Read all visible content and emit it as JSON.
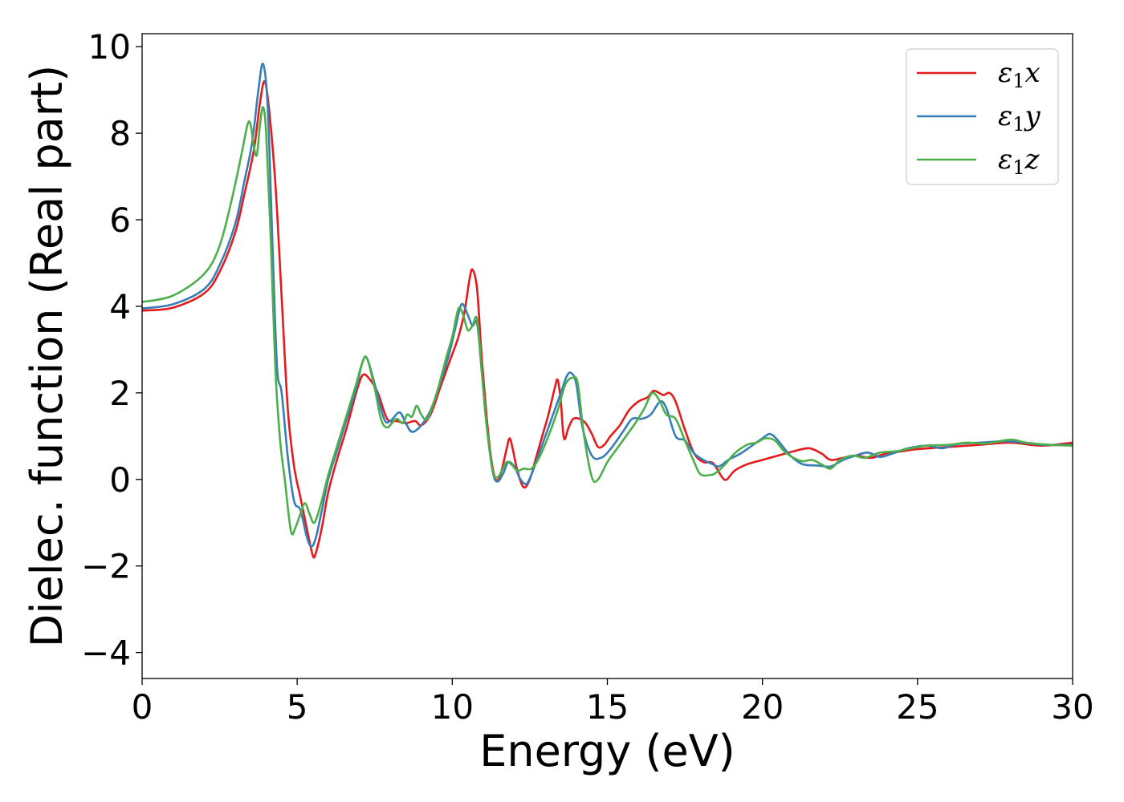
{
  "chart_data": {
    "type": "line",
    "xlabel": "Energy (eV)",
    "ylabel": "Dielec. function (Real part)",
    "xlim": [
      0,
      30
    ],
    "ylim": [
      -4.6,
      10.3
    ],
    "xticks": [
      0,
      5,
      10,
      15,
      20,
      25,
      30
    ],
    "xtick_labels": [
      "0",
      "5",
      "10",
      "15",
      "20",
      "25",
      "30"
    ],
    "yticks": [
      -4,
      -2,
      0,
      2,
      4,
      6,
      8,
      10
    ],
    "ytick_labels": [
      "−4",
      "−2",
      "0",
      "2",
      "4",
      "6",
      "8",
      "10"
    ],
    "grid": false,
    "legend_position": "top-right",
    "series": [
      {
        "name": "ε1x",
        "legend_base": "ε",
        "legend_sub": "1",
        "legend_var": "x",
        "color": "#e41a1c",
        "points": [
          [
            0,
            3.9
          ],
          [
            1,
            3.97
          ],
          [
            2,
            4.3
          ],
          [
            2.5,
            4.8
          ],
          [
            3,
            5.7
          ],
          [
            3.3,
            6.6
          ],
          [
            3.6,
            7.6
          ],
          [
            3.8,
            8.7
          ],
          [
            3.95,
            9.2
          ],
          [
            4.1,
            8.5
          ],
          [
            4.3,
            6.8
          ],
          [
            4.5,
            4.2
          ],
          [
            4.7,
            1.6
          ],
          [
            4.9,
            0.3
          ],
          [
            5.1,
            -0.4
          ],
          [
            5.3,
            -1.1
          ],
          [
            5.5,
            -1.75
          ],
          [
            5.6,
            -1.7
          ],
          [
            5.8,
            -1.1
          ],
          [
            6,
            -0.3
          ],
          [
            6.3,
            0.5
          ],
          [
            6.6,
            1.2
          ],
          [
            6.9,
            2.0
          ],
          [
            7.1,
            2.4
          ],
          [
            7.3,
            2.35
          ],
          [
            7.6,
            2.0
          ],
          [
            7.9,
            1.4
          ],
          [
            8.2,
            1.35
          ],
          [
            8.5,
            1.3
          ],
          [
            8.8,
            1.35
          ],
          [
            9.0,
            1.25
          ],
          [
            9.3,
            1.5
          ],
          [
            9.6,
            2.1
          ],
          [
            9.9,
            2.7
          ],
          [
            10.2,
            3.3
          ],
          [
            10.4,
            3.9
          ],
          [
            10.55,
            4.6
          ],
          [
            10.65,
            4.85
          ],
          [
            10.8,
            4.4
          ],
          [
            10.95,
            2.8
          ],
          [
            11.1,
            1.5
          ],
          [
            11.25,
            0.5
          ],
          [
            11.4,
            0.0
          ],
          [
            11.55,
            0.1
          ],
          [
            11.75,
            0.7
          ],
          [
            11.85,
            0.95
          ],
          [
            11.95,
            0.7
          ],
          [
            12.1,
            0.2
          ],
          [
            12.3,
            -0.18
          ],
          [
            12.5,
            0.0
          ],
          [
            12.7,
            0.5
          ],
          [
            12.9,
            1.0
          ],
          [
            13.1,
            1.5
          ],
          [
            13.3,
            2.1
          ],
          [
            13.4,
            2.3
          ],
          [
            13.5,
            1.8
          ],
          [
            13.6,
            0.95
          ],
          [
            13.75,
            1.2
          ],
          [
            13.9,
            1.4
          ],
          [
            14.1,
            1.4
          ],
          [
            14.3,
            1.3
          ],
          [
            14.5,
            1.05
          ],
          [
            14.7,
            0.75
          ],
          [
            14.9,
            0.8
          ],
          [
            15.1,
            1.0
          ],
          [
            15.4,
            1.25
          ],
          [
            15.7,
            1.6
          ],
          [
            16.0,
            1.8
          ],
          [
            16.3,
            1.9
          ],
          [
            16.5,
            2.05
          ],
          [
            16.8,
            1.95
          ],
          [
            17.0,
            2.0
          ],
          [
            17.2,
            1.8
          ],
          [
            17.5,
            1.15
          ],
          [
            17.8,
            0.6
          ],
          [
            18.1,
            0.4
          ],
          [
            18.4,
            0.38
          ],
          [
            18.7,
            0.05
          ],
          [
            18.85,
            0.0
          ],
          [
            19.1,
            0.2
          ],
          [
            19.5,
            0.35
          ],
          [
            20.0,
            0.45
          ],
          [
            20.5,
            0.55
          ],
          [
            21.0,
            0.65
          ],
          [
            21.5,
            0.72
          ],
          [
            21.9,
            0.6
          ],
          [
            22.2,
            0.45
          ],
          [
            22.6,
            0.5
          ],
          [
            23.0,
            0.55
          ],
          [
            23.5,
            0.5
          ],
          [
            24.0,
            0.6
          ],
          [
            24.5,
            0.65
          ],
          [
            25.0,
            0.7
          ],
          [
            26.0,
            0.75
          ],
          [
            27.0,
            0.8
          ],
          [
            28.0,
            0.85
          ],
          [
            29.0,
            0.78
          ],
          [
            30.0,
            0.85
          ]
        ]
      },
      {
        "name": "ε1y",
        "legend_base": "ε",
        "legend_sub": "1",
        "legend_var": "y",
        "color": "#377eb8",
        "points": [
          [
            0,
            3.95
          ],
          [
            1,
            4.05
          ],
          [
            2,
            4.4
          ],
          [
            2.5,
            4.95
          ],
          [
            3,
            5.9
          ],
          [
            3.3,
            6.9
          ],
          [
            3.55,
            7.8
          ],
          [
            3.75,
            9.0
          ],
          [
            3.9,
            9.6
          ],
          [
            4.05,
            8.6
          ],
          [
            4.2,
            5.5
          ],
          [
            4.35,
            2.6
          ],
          [
            4.5,
            2.0
          ],
          [
            4.7,
            0.5
          ],
          [
            4.9,
            -0.5
          ],
          [
            5.1,
            -0.7
          ],
          [
            5.3,
            -1.3
          ],
          [
            5.45,
            -1.55
          ],
          [
            5.6,
            -1.35
          ],
          [
            5.8,
            -0.7
          ],
          [
            6.0,
            0.0
          ],
          [
            6.3,
            0.7
          ],
          [
            6.6,
            1.4
          ],
          [
            6.9,
            2.1
          ],
          [
            7.1,
            2.7
          ],
          [
            7.25,
            2.8
          ],
          [
            7.5,
            2.2
          ],
          [
            7.8,
            1.4
          ],
          [
            8.0,
            1.35
          ],
          [
            8.3,
            1.55
          ],
          [
            8.5,
            1.3
          ],
          [
            8.7,
            1.1
          ],
          [
            9.0,
            1.25
          ],
          [
            9.3,
            1.6
          ],
          [
            9.6,
            2.2
          ],
          [
            9.9,
            2.9
          ],
          [
            10.1,
            3.5
          ],
          [
            10.3,
            4.05
          ],
          [
            10.5,
            3.8
          ],
          [
            10.65,
            3.55
          ],
          [
            10.8,
            3.6
          ],
          [
            10.95,
            2.5
          ],
          [
            11.1,
            1.3
          ],
          [
            11.3,
            0.2
          ],
          [
            11.45,
            -0.05
          ],
          [
            11.65,
            0.15
          ],
          [
            11.8,
            0.4
          ],
          [
            12.0,
            0.3
          ],
          [
            12.2,
            0.0
          ],
          [
            12.4,
            -0.1
          ],
          [
            12.6,
            0.2
          ],
          [
            12.9,
            0.8
          ],
          [
            13.2,
            1.4
          ],
          [
            13.5,
            2.0
          ],
          [
            13.7,
            2.4
          ],
          [
            13.85,
            2.45
          ],
          [
            14.0,
            2.2
          ],
          [
            14.2,
            1.2
          ],
          [
            14.5,
            0.55
          ],
          [
            14.8,
            0.5
          ],
          [
            15.1,
            0.7
          ],
          [
            15.5,
            1.1
          ],
          [
            15.8,
            1.4
          ],
          [
            16.1,
            1.4
          ],
          [
            16.4,
            1.5
          ],
          [
            16.7,
            1.8
          ],
          [
            16.9,
            1.65
          ],
          [
            17.2,
            1.0
          ],
          [
            17.5,
            0.9
          ],
          [
            17.8,
            0.6
          ],
          [
            18.1,
            0.45
          ],
          [
            18.4,
            0.35
          ],
          [
            18.6,
            0.3
          ],
          [
            18.9,
            0.45
          ],
          [
            19.3,
            0.6
          ],
          [
            19.7,
            0.8
          ],
          [
            20.0,
            0.95
          ],
          [
            20.25,
            1.05
          ],
          [
            20.5,
            0.9
          ],
          [
            20.9,
            0.55
          ],
          [
            21.3,
            0.35
          ],
          [
            21.8,
            0.32
          ],
          [
            22.2,
            0.3
          ],
          [
            22.6,
            0.45
          ],
          [
            23.0,
            0.55
          ],
          [
            23.4,
            0.62
          ],
          [
            23.8,
            0.52
          ],
          [
            24.2,
            0.6
          ],
          [
            24.7,
            0.72
          ],
          [
            25.3,
            0.78
          ],
          [
            25.8,
            0.72
          ],
          [
            26.3,
            0.82
          ],
          [
            27.0,
            0.85
          ],
          [
            28.0,
            0.88
          ],
          [
            29.0,
            0.8
          ],
          [
            30.0,
            0.8
          ]
        ]
      },
      {
        "name": "ε1z",
        "legend_base": "ε",
        "legend_sub": "1",
        "legend_var": "z",
        "color": "#4daf4a",
        "points": [
          [
            0,
            4.1
          ],
          [
            1,
            4.25
          ],
          [
            2,
            4.75
          ],
          [
            2.5,
            5.4
          ],
          [
            2.9,
            6.5
          ],
          [
            3.2,
            7.5
          ],
          [
            3.4,
            8.2
          ],
          [
            3.5,
            8.2
          ],
          [
            3.6,
            7.7
          ],
          [
            3.7,
            7.5
          ],
          [
            3.8,
            8.2
          ],
          [
            3.9,
            8.6
          ],
          [
            4.0,
            8.0
          ],
          [
            4.15,
            5.5
          ],
          [
            4.3,
            2.5
          ],
          [
            4.45,
            0.9
          ],
          [
            4.6,
            0.0
          ],
          [
            4.8,
            -1.2
          ],
          [
            4.95,
            -1.1
          ],
          [
            5.1,
            -0.8
          ],
          [
            5.25,
            -0.55
          ],
          [
            5.4,
            -0.8
          ],
          [
            5.55,
            -1.0
          ],
          [
            5.75,
            -0.6
          ],
          [
            6.0,
            0.1
          ],
          [
            6.3,
            0.8
          ],
          [
            6.6,
            1.5
          ],
          [
            6.9,
            2.2
          ],
          [
            7.1,
            2.7
          ],
          [
            7.25,
            2.8
          ],
          [
            7.5,
            2.1
          ],
          [
            7.7,
            1.4
          ],
          [
            7.9,
            1.2
          ],
          [
            8.2,
            1.4
          ],
          [
            8.4,
            1.3
          ],
          [
            8.55,
            1.5
          ],
          [
            8.7,
            1.45
          ],
          [
            8.85,
            1.7
          ],
          [
            9.0,
            1.5
          ],
          [
            9.2,
            1.4
          ],
          [
            9.5,
            2.0
          ],
          [
            9.8,
            2.8
          ],
          [
            10.0,
            3.3
          ],
          [
            10.2,
            3.95
          ],
          [
            10.35,
            3.8
          ],
          [
            10.5,
            3.45
          ],
          [
            10.65,
            3.55
          ],
          [
            10.8,
            3.7
          ],
          [
            10.95,
            2.5
          ],
          [
            11.1,
            1.3
          ],
          [
            11.3,
            0.2
          ],
          [
            11.45,
            0.05
          ],
          [
            11.6,
            0.2
          ],
          [
            11.75,
            0.4
          ],
          [
            11.9,
            0.35
          ],
          [
            12.1,
            0.2
          ],
          [
            12.3,
            0.25
          ],
          [
            12.55,
            0.25
          ],
          [
            12.8,
            0.5
          ],
          [
            13.1,
            1.0
          ],
          [
            13.4,
            1.6
          ],
          [
            13.65,
            2.2
          ],
          [
            13.9,
            2.35
          ],
          [
            14.05,
            2.2
          ],
          [
            14.25,
            1.0
          ],
          [
            14.5,
            0.05
          ],
          [
            14.7,
            0.0
          ],
          [
            15.0,
            0.4
          ],
          [
            15.3,
            0.7
          ],
          [
            15.6,
            1.0
          ],
          [
            15.9,
            1.3
          ],
          [
            16.2,
            1.65
          ],
          [
            16.45,
            2.0
          ],
          [
            16.7,
            1.8
          ],
          [
            16.9,
            1.5
          ],
          [
            17.2,
            1.4
          ],
          [
            17.5,
            0.9
          ],
          [
            17.8,
            0.4
          ],
          [
            18.0,
            0.12
          ],
          [
            18.3,
            0.1
          ],
          [
            18.5,
            0.15
          ],
          [
            18.8,
            0.35
          ],
          [
            19.1,
            0.6
          ],
          [
            19.5,
            0.8
          ],
          [
            19.8,
            0.85
          ],
          [
            20.1,
            0.95
          ],
          [
            20.4,
            0.9
          ],
          [
            20.7,
            0.65
          ],
          [
            21.0,
            0.5
          ],
          [
            21.3,
            0.42
          ],
          [
            21.6,
            0.45
          ],
          [
            21.9,
            0.35
          ],
          [
            22.2,
            0.25
          ],
          [
            22.5,
            0.45
          ],
          [
            22.9,
            0.55
          ],
          [
            23.3,
            0.5
          ],
          [
            23.8,
            0.62
          ],
          [
            24.3,
            0.65
          ],
          [
            24.8,
            0.72
          ],
          [
            25.3,
            0.78
          ],
          [
            26.0,
            0.8
          ],
          [
            26.6,
            0.85
          ],
          [
            27.2,
            0.83
          ],
          [
            28.0,
            0.92
          ],
          [
            28.5,
            0.85
          ],
          [
            29.3,
            0.8
          ],
          [
            30.0,
            0.78
          ]
        ]
      }
    ]
  }
}
